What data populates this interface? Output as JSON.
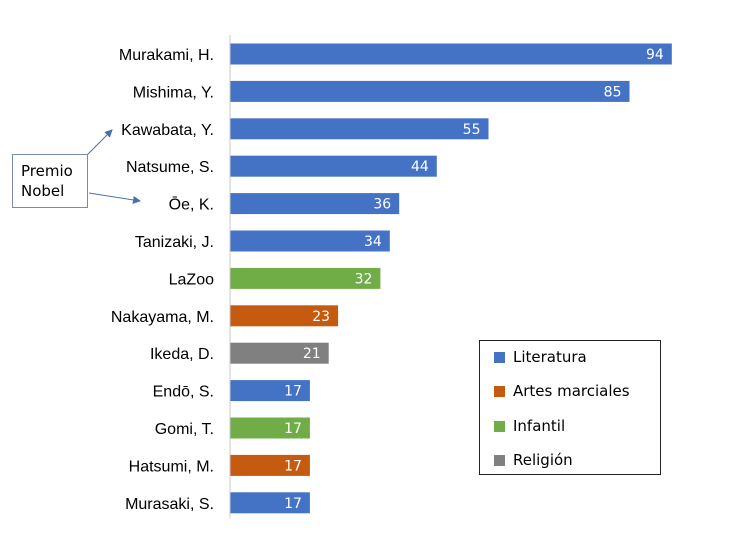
{
  "chart_data": {
    "type": "bar",
    "orientation": "horizontal",
    "categories": [
      "Murakami, H.",
      "Mishima, Y.",
      "Kawabata, Y.",
      "Natsume, S.",
      "Ōe, K.",
      "Tanizaki, J.",
      "LaZoo",
      "Nakayama, M.",
      "Ikeda, D.",
      "Endō, S.",
      "Gomi, T.",
      "Hatsumi, M.",
      "Murasaki, S."
    ],
    "values": [
      94,
      85,
      55,
      44,
      36,
      34,
      32,
      23,
      21,
      17,
      17,
      17,
      17
    ],
    "groups": [
      "Literatura",
      "Literatura",
      "Literatura",
      "Literatura",
      "Literatura",
      "Literatura",
      "Infantil",
      "Artes marciales",
      "Religión",
      "Literatura",
      "Infantil",
      "Artes marciales",
      "Literatura"
    ],
    "xlim": [
      0,
      100
    ],
    "grid": false,
    "data_labels": true,
    "legend": {
      "placement": "bottom-right",
      "entries": [
        {
          "name": "Literatura",
          "color": "#4472c4"
        },
        {
          "name": "Artes marciales",
          "color": "#c55a11"
        },
        {
          "name": "Infantil",
          "color": "#70ad47"
        },
        {
          "name": "Religión",
          "color": "#808080"
        }
      ]
    },
    "annotation": {
      "lines": [
        "Premio",
        "Nobel"
      ],
      "targets": [
        "Kawabata, Y.",
        "Ōe, K."
      ]
    }
  }
}
